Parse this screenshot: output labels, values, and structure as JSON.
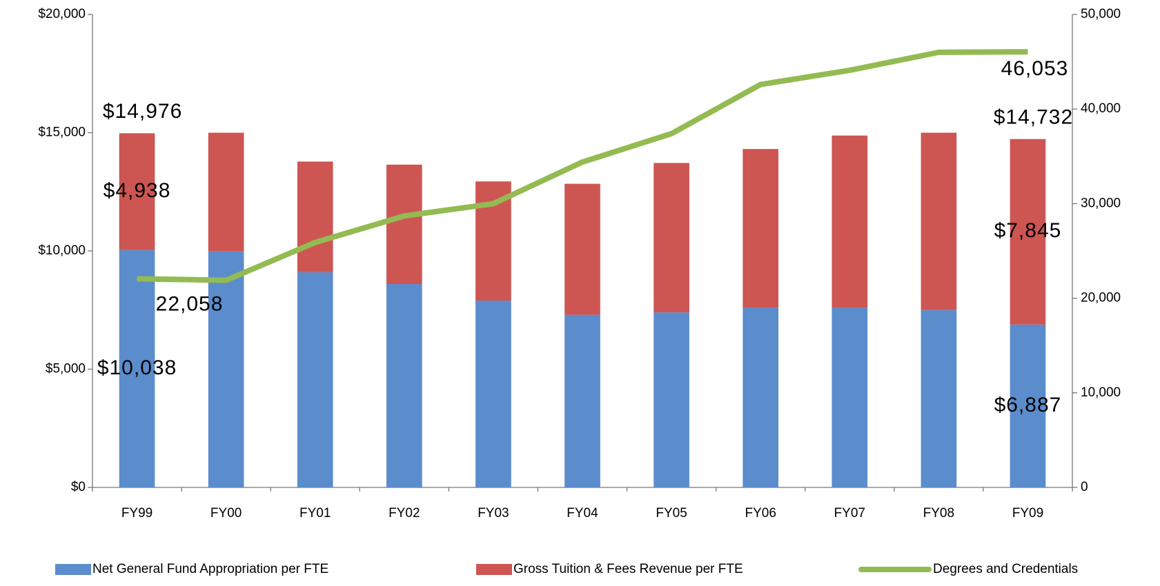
{
  "chart_data": {
    "type": "bar",
    "stacked": true,
    "categories": [
      "FY99",
      "FY00",
      "FY01",
      "FY02",
      "FY03",
      "FY04",
      "FY05",
      "FY06",
      "FY07",
      "FY08",
      "FY09"
    ],
    "series": [
      {
        "name": "Net General Fund Appropriation per FTE",
        "color": "#5b8ccc",
        "values": [
          10038,
          9980,
          9100,
          8600,
          7900,
          7300,
          7400,
          7600,
          7600,
          7500,
          6887
        ],
        "value_labels": [
          "$10,038",
          null,
          null,
          null,
          null,
          null,
          null,
          null,
          null,
          null,
          "$6,887"
        ]
      },
      {
        "name": "Gross Tuition & Fees Revenue per FTE",
        "color": "#cd5552",
        "values": [
          4938,
          5020,
          4680,
          5050,
          5040,
          5540,
          6320,
          6710,
          7280,
          7500,
          7845
        ],
        "value_labels": [
          "$4,938",
          null,
          null,
          null,
          null,
          null,
          null,
          null,
          null,
          null,
          "$7,845"
        ]
      },
      {
        "name": "Degrees and Credentials",
        "color": "#93bb52",
        "type": "line",
        "axis": "y2",
        "values": [
          22058,
          21900,
          25900,
          28700,
          30000,
          34400,
          37400,
          42600,
          44100,
          46000,
          46053
        ],
        "value_labels": [
          "22,058",
          null,
          null,
          null,
          null,
          null,
          null,
          null,
          null,
          null,
          "46,053"
        ]
      }
    ],
    "annotations": [
      "$14,976",
      "$14,732"
    ],
    "ylim": [
      0,
      20000
    ],
    "yticks": [
      {
        "value": 0,
        "label": "$0"
      },
      {
        "value": 5000,
        "label": "$5,000"
      },
      {
        "value": 10000,
        "label": "$10,000"
      },
      {
        "value": 15000,
        "label": "$15,000"
      },
      {
        "value": 20000,
        "label": "$20,000"
      }
    ],
    "y2lim": [
      0,
      50000
    ],
    "y2ticks": [
      0,
      {
        "value": 10000,
        "label": "10,000"
      },
      {
        "value": 20000,
        "label": "20,000"
      },
      {
        "value": 30000,
        "label": "30,000"
      },
      {
        "value": 40000,
        "label": "40,000"
      },
      {
        "value": 50000,
        "label": "50,000"
      }
    ],
    "grid": false,
    "legend": "bottom"
  }
}
